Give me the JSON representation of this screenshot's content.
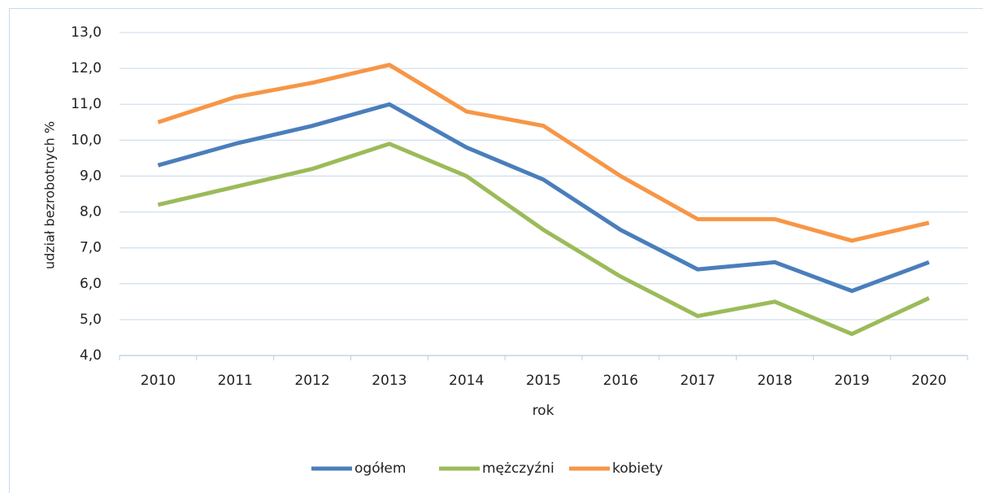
{
  "chart_data": {
    "type": "line",
    "categories": [
      "2010",
      "2011",
      "2012",
      "2013",
      "2014",
      "2015",
      "2016",
      "2017",
      "2018",
      "2019",
      "2020"
    ],
    "series": [
      {
        "name": "ogółem",
        "color": "#4a7ebb",
        "values": [
          9.3,
          9.9,
          10.4,
          11.0,
          9.8,
          8.9,
          7.5,
          6.4,
          6.6,
          5.8,
          6.6
        ]
      },
      {
        "name": "mężczyźni",
        "color": "#9bbb59",
        "values": [
          8.2,
          8.7,
          9.2,
          9.9,
          9.0,
          7.5,
          6.2,
          5.1,
          5.5,
          4.6,
          5.6
        ]
      },
      {
        "name": "kobiety",
        "color": "#f79646",
        "values": [
          10.5,
          11.2,
          11.6,
          12.1,
          10.8,
          10.4,
          9.0,
          7.8,
          7.8,
          7.2,
          7.7
        ]
      }
    ],
    "xlabel": "rok",
    "ylabel": "udział bezrobotnych %",
    "ylim": [
      4,
      13
    ],
    "yticks": [
      {
        "value": 4,
        "label": "4,0"
      },
      {
        "value": 5,
        "label": "5,0"
      },
      {
        "value": 6,
        "label": "6,0"
      },
      {
        "value": 7,
        "label": "7,0"
      },
      {
        "value": 8,
        "label": "8,0"
      },
      {
        "value": 9,
        "label": "9,0"
      },
      {
        "value": 10,
        "label": "10,0"
      },
      {
        "value": 11,
        "label": "11,0"
      },
      {
        "value": 12,
        "label": "12,0"
      },
      {
        "value": 13,
        "label": "13,0"
      }
    ],
    "grid": true,
    "legend": "bottom"
  }
}
